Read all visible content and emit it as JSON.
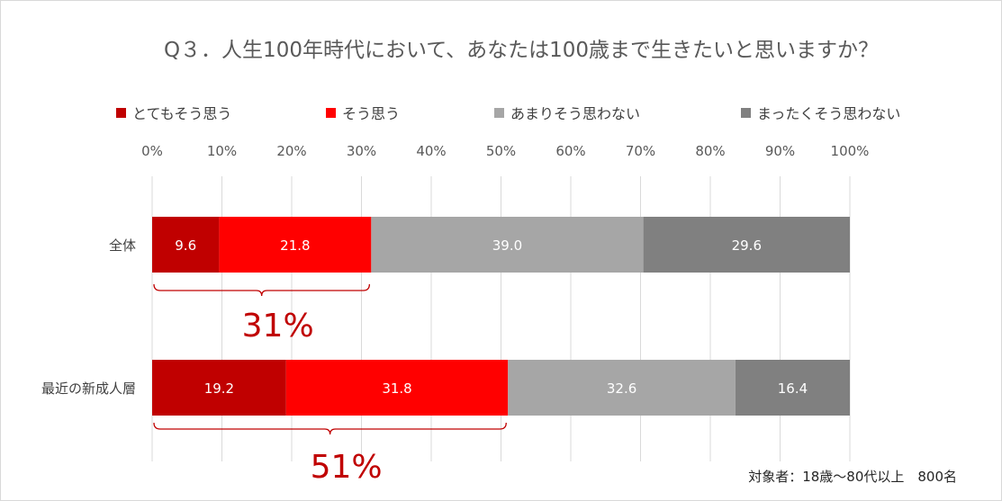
{
  "chart_data": {
    "type": "bar",
    "orientation": "horizontal",
    "stacked": true,
    "title": "Q３．人生100年時代において、あなたは100歳まで生きたいと思いますか？",
    "categories": [
      "全体",
      "最近の新成人層"
    ],
    "series": [
      {
        "name": "とてもそう思う",
        "color": "#c00000",
        "values": [
          9.6,
          19.2
        ]
      },
      {
        "name": "そう思う",
        "color": "#ff0000",
        "values": [
          21.8,
          31.8
        ]
      },
      {
        "name": "あまりそう思わない",
        "color": "#a6a6a6",
        "values": [
          39.0,
          32.6
        ]
      },
      {
        "name": "まったくそう思わない",
        "color": "#808080",
        "values": [
          29.6,
          16.4
        ]
      }
    ],
    "xlim": [
      0,
      100
    ],
    "x_ticks": [
      "0%",
      "10%",
      "20%",
      "30%",
      "40%",
      "50%",
      "60%",
      "70%",
      "80%",
      "90%",
      "100%"
    ],
    "grid": true,
    "legend_position": "top",
    "annotations": [
      {
        "category": "全体",
        "label": "31%",
        "from": 0,
        "to": 31.4
      },
      {
        "category": "最近の新成人層",
        "label": "51%",
        "from": 0,
        "to": 51.0
      }
    ],
    "note": "対象者：18歳～80代以上　800名"
  }
}
